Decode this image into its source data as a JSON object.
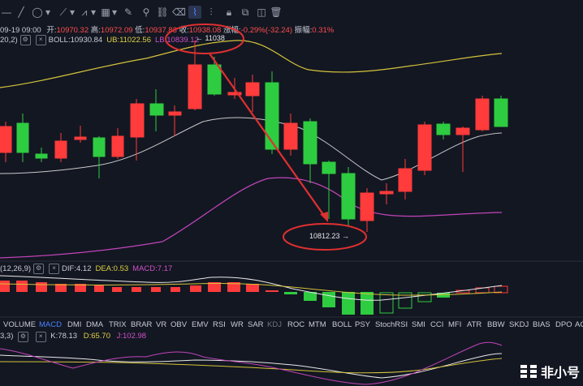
{
  "toolbar": {
    "icons": [
      "minus-icon",
      "line-icon",
      "circle-icon",
      "chevron-down-icon",
      "trend-line-icon",
      "chevron-down-icon",
      "measure-icon",
      "chevron-down-icon",
      "fib-icon",
      "chevron-down-icon",
      "brush-icon",
      "ruler-icon",
      "link-icon",
      "magnet-icon",
      "levels-icon",
      "lock-icon",
      "copy-icon",
      "trash-icon"
    ]
  },
  "ohlc": {
    "date": "09-19 09:00",
    "open_label": "开:",
    "open": "10970.32",
    "high_label": "高:",
    "high": "10972.09",
    "low_label": "低:",
    "low": "10937.83",
    "close_label": "收:",
    "close": "10938.08",
    "change_label": "涨幅:",
    "change": "-0.29%(-32.24)",
    "amp_label": "振幅:",
    "amp": "0.31%"
  },
  "boll": {
    "params": "20,2)",
    "boll_label": "BOLL:",
    "boll_value": "10930.84",
    "ub_label": "UB:",
    "ub_value": "11022.56",
    "lb_label": "LB:",
    "lb_value": "10839.12"
  },
  "annotations": {
    "high_marker": "← 11038",
    "low_marker": "10812.23 →"
  },
  "macd": {
    "params": "(12,26,9)",
    "dif_label": "DIF:",
    "dif_value": "4.12",
    "dea_label": "DEA:",
    "dea_value": "0.53",
    "macd_label": "MACD:",
    "macd_value": "7.17"
  },
  "tabs": [
    "VOLUME",
    "MACD",
    "DMI",
    "DMA",
    "TRIX",
    "BRAR",
    "VR",
    "OBV",
    "EMV",
    "RSI",
    "WR",
    "SAR",
    "KDJ",
    "ROC",
    "MTM",
    "BOLL",
    "PSY",
    "StochRSI",
    "SMI",
    "CCI",
    "MFI",
    "ATR",
    "BBW",
    "SKDJ",
    "BIAS",
    "DPO",
    "AC"
  ],
  "active_tab": "MACD",
  "kdj": {
    "params": "3,3)",
    "k_label": "K:",
    "k_value": "78.13",
    "d_label": "D:",
    "d_value": "65.70",
    "j_label": "J:",
    "j_value": "102.98"
  },
  "logo": {
    "text": "非小号"
  },
  "colors": {
    "up": "#ff3b3b",
    "down": "#2ecc40",
    "ub": "#d4c33a",
    "mid": "#c8c8c8",
    "lb": "#c045b8",
    "highlight": "#e03030"
  }
}
